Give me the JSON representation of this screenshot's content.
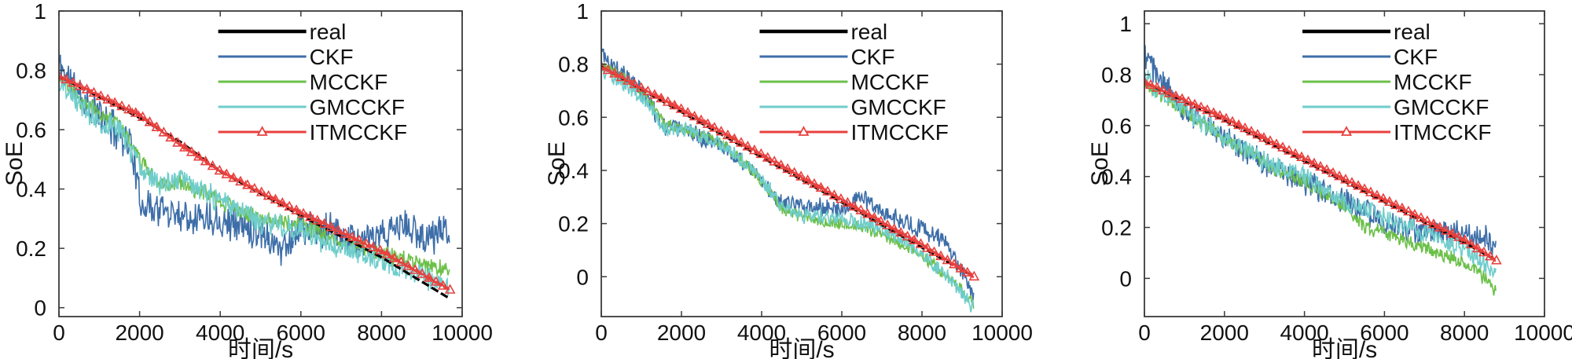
{
  "colors": {
    "real": "#000000",
    "CKF": "#3d6ea8",
    "MCCKF": "#6cc04a",
    "GMCCKF": "#6fcdcb",
    "ITMCCKF": "#e8413e",
    "axis": "#3a3a3a"
  },
  "chart_data": [
    {
      "type": "line",
      "title": "",
      "xlabel": "时间/s",
      "ylabel": "SoE",
      "xlim": [
        0,
        10000
      ],
      "ylim": [
        -0.03,
        1.0
      ],
      "xticks": [
        0,
        2000,
        4000,
        6000,
        8000,
        10000
      ],
      "xtick_labels": [
        "0",
        "2000",
        "4000",
        "6000",
        "8000",
        "10000"
      ],
      "yticks": [
        0,
        0.2,
        0.4,
        0.6,
        0.8,
        1
      ],
      "ytick_labels": [
        "0",
        "0.2",
        "0.4",
        "0.6",
        "0.8",
        "1"
      ],
      "legend": [
        "real",
        "CKF",
        "MCCKF",
        "GMCCKF",
        "ITMCCKF"
      ],
      "legend_position": "top-right",
      "x_end": 9700,
      "series": [
        {
          "name": "real",
          "x": [
            0,
            2000,
            3000,
            4000,
            6000,
            8000,
            9700
          ],
          "y": [
            0.78,
            0.64,
            0.56,
            0.46,
            0.31,
            0.17,
            0.03
          ]
        },
        {
          "name": "CKF",
          "x": [
            0,
            500,
            1000,
            1800,
            2000,
            2500,
            3000,
            4000,
            5000,
            5500,
            6000,
            7000,
            7500,
            8000,
            8500,
            9000,
            9700
          ],
          "y": [
            0.82,
            0.72,
            0.65,
            0.55,
            0.36,
            0.33,
            0.32,
            0.3,
            0.26,
            0.2,
            0.27,
            0.25,
            0.22,
            0.23,
            0.28,
            0.24,
            0.26
          ],
          "noise": 0.055,
          "seed": 11
        },
        {
          "name": "MCCKF",
          "x": [
            0,
            500,
            1000,
            1500,
            2000,
            2500,
            3000,
            4000,
            5000,
            6000,
            7000,
            8000,
            8500,
            9000,
            9700
          ],
          "y": [
            0.78,
            0.7,
            0.66,
            0.62,
            0.5,
            0.42,
            0.42,
            0.36,
            0.3,
            0.28,
            0.22,
            0.18,
            0.17,
            0.14,
            0.13
          ],
          "noise": 0.025,
          "seed": 23
        },
        {
          "name": "GMCCKF",
          "x": [
            0,
            500,
            1000,
            1500,
            2000,
            2500,
            3000,
            4000,
            5000,
            6000,
            7000,
            8000,
            8500,
            9000,
            9700
          ],
          "y": [
            0.76,
            0.69,
            0.63,
            0.6,
            0.48,
            0.42,
            0.43,
            0.36,
            0.29,
            0.26,
            0.2,
            0.16,
            0.13,
            0.11,
            0.06
          ],
          "noise": 0.035,
          "seed": 37
        },
        {
          "name": "ITMCCKF",
          "x": [
            0,
            2000,
            3000,
            4000,
            6000,
            8000,
            9700
          ],
          "y": [
            0.78,
            0.65,
            0.55,
            0.46,
            0.32,
            0.19,
            0.06
          ],
          "noise": 0.004,
          "seed": 5,
          "marker": "triangle"
        }
      ]
    },
    {
      "type": "line",
      "title": "",
      "xlabel": "时间/s",
      "ylabel": "SoE",
      "xlim": [
        0,
        10000
      ],
      "ylim": [
        -0.15,
        1.0
      ],
      "xticks": [
        0,
        2000,
        4000,
        6000,
        8000,
        10000
      ],
      "xtick_labels": [
        "0",
        "2000",
        "4000",
        "6000",
        "8000",
        "10000"
      ],
      "yticks": [
        0,
        0.2,
        0.4,
        0.6,
        0.8,
        1
      ],
      "ytick_labels": [
        "0",
        "0.2",
        "0.4",
        "0.6",
        "0.8",
        "1"
      ],
      "legend": [
        "real",
        "CKF",
        "MCCKF",
        "GMCCKF",
        "ITMCCKF"
      ],
      "legend_position": "top-right",
      "x_end": 9300,
      "series": [
        {
          "name": "real",
          "x": [
            0,
            2000,
            4000,
            6000,
            8000,
            9300
          ],
          "y": [
            0.79,
            0.62,
            0.45,
            0.28,
            0.11,
            0.0
          ]
        },
        {
          "name": "CKF",
          "x": [
            0,
            1000,
            1600,
            2000,
            3000,
            3500,
            4000,
            4500,
            5000,
            6000,
            6500,
            7000,
            8000,
            8500,
            9000,
            9300
          ],
          "y": [
            0.84,
            0.7,
            0.56,
            0.56,
            0.49,
            0.43,
            0.36,
            0.27,
            0.27,
            0.25,
            0.3,
            0.24,
            0.18,
            0.14,
            0.02,
            -0.08
          ],
          "noise": 0.03,
          "seed": 41
        },
        {
          "name": "MCCKF",
          "x": [
            0,
            1000,
            1600,
            2000,
            3000,
            3500,
            4000,
            4500,
            5000,
            6000,
            7000,
            8000,
            8500,
            9000,
            9300
          ],
          "y": [
            0.8,
            0.7,
            0.57,
            0.56,
            0.5,
            0.44,
            0.36,
            0.26,
            0.22,
            0.2,
            0.16,
            0.08,
            0.02,
            -0.05,
            -0.1
          ],
          "noise": 0.02,
          "seed": 43
        },
        {
          "name": "GMCCKF",
          "x": [
            0,
            1000,
            1600,
            2000,
            3000,
            3500,
            4000,
            4500,
            5000,
            6000,
            7000,
            8000,
            8500,
            9000,
            9300
          ],
          "y": [
            0.78,
            0.68,
            0.55,
            0.56,
            0.5,
            0.44,
            0.37,
            0.27,
            0.23,
            0.22,
            0.18,
            0.09,
            0.02,
            -0.06,
            -0.12
          ],
          "noise": 0.025,
          "seed": 47
        },
        {
          "name": "ITMCCKF",
          "x": [
            0,
            2000,
            4000,
            6000,
            8000,
            9300
          ],
          "y": [
            0.79,
            0.63,
            0.46,
            0.29,
            0.12,
            0.0
          ],
          "noise": 0.004,
          "seed": 53,
          "marker": "triangle"
        }
      ]
    },
    {
      "type": "line",
      "title": "",
      "xlabel": "时间/s",
      "ylabel": "SoE",
      "xlim": [
        0,
        10000
      ],
      "ylim": [
        -0.15,
        1.05
      ],
      "xticks": [
        0,
        2000,
        4000,
        6000,
        8000,
        10000
      ],
      "xtick_labels": [
        "0",
        "2000",
        "4000",
        "6000",
        "8000",
        "10000"
      ],
      "yticks": [
        0,
        0.2,
        0.4,
        0.6,
        0.8,
        1
      ],
      "ytick_labels": [
        "0",
        "0.2",
        "0.4",
        "0.6",
        "0.8",
        "1"
      ],
      "legend": [
        "real",
        "CKF",
        "MCCKF",
        "GMCCKF",
        "ITMCCKF"
      ],
      "legend_position": "top-right",
      "x_end": 8800,
      "series": [
        {
          "name": "real",
          "x": [
            0,
            2000,
            4000,
            6000,
            8000,
            8800
          ],
          "y": [
            0.77,
            0.62,
            0.46,
            0.3,
            0.14,
            0.07
          ]
        },
        {
          "name": "CKF",
          "x": [
            0,
            300,
            1000,
            2000,
            3000,
            4000,
            5000,
            6000,
            7000,
            8000,
            8500,
            8800
          ],
          "y": [
            0.88,
            0.8,
            0.66,
            0.55,
            0.45,
            0.38,
            0.3,
            0.22,
            0.18,
            0.18,
            0.16,
            0.12
          ],
          "noise": 0.045,
          "seed": 61
        },
        {
          "name": "MCCKF",
          "x": [
            0,
            1000,
            2000,
            3000,
            4000,
            5000,
            5500,
            6000,
            7000,
            8000,
            8500,
            8800
          ],
          "y": [
            0.76,
            0.66,
            0.55,
            0.45,
            0.38,
            0.28,
            0.2,
            0.18,
            0.12,
            0.06,
            0.0,
            -0.06
          ],
          "noise": 0.025,
          "seed": 67
        },
        {
          "name": "GMCCKF",
          "x": [
            0,
            300,
            1000,
            2000,
            3000,
            4000,
            5000,
            6000,
            7000,
            8000,
            8500,
            8800
          ],
          "y": [
            0.8,
            0.74,
            0.66,
            0.55,
            0.46,
            0.4,
            0.3,
            0.24,
            0.18,
            0.12,
            0.07,
            0.02
          ],
          "noise": 0.035,
          "seed": 71
        },
        {
          "name": "ITMCCKF",
          "x": [
            0,
            2000,
            4000,
            6000,
            8000,
            8800
          ],
          "y": [
            0.77,
            0.63,
            0.47,
            0.31,
            0.15,
            0.07
          ],
          "noise": 0.004,
          "seed": 73,
          "marker": "triangle"
        }
      ]
    }
  ]
}
